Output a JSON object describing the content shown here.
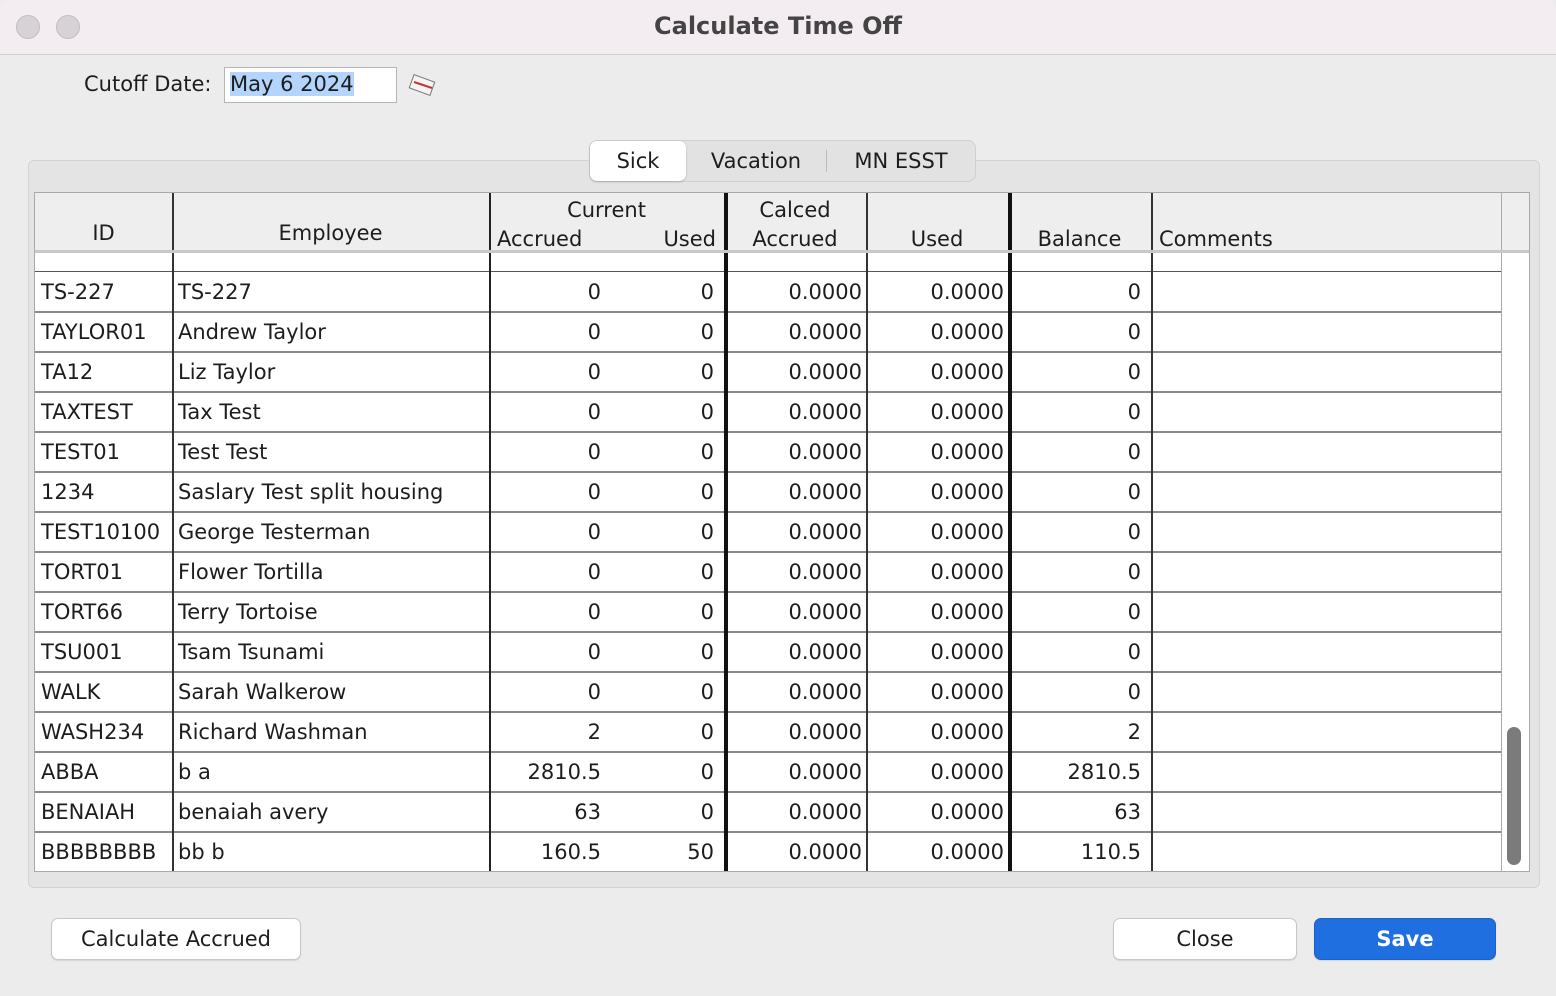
{
  "window": {
    "title": "Calculate Time Off"
  },
  "cutoff": {
    "label": "Cutoff Date:",
    "value": "May 6 2024"
  },
  "tabs": [
    "Sick",
    "Vacation",
    "MN ESST"
  ],
  "table": {
    "group_headers": [
      "Current",
      "Calced"
    ],
    "columns": [
      "ID",
      "Employee",
      "Accrued",
      "Used",
      "Accrued",
      "Used",
      "Balance",
      "Comments"
    ],
    "rows": [
      [
        "TS-227",
        "TS-227",
        "0",
        "0",
        "0.0000",
        "0.0000",
        "0",
        ""
      ],
      [
        "TAYLOR01",
        "Andrew Taylor",
        "0",
        "0",
        "0.0000",
        "0.0000",
        "0",
        ""
      ],
      [
        "TA12",
        "Liz Taylor",
        "0",
        "0",
        "0.0000",
        "0.0000",
        "0",
        ""
      ],
      [
        "TAXTEST",
        "Tax Test",
        "0",
        "0",
        "0.0000",
        "0.0000",
        "0",
        ""
      ],
      [
        "TEST01",
        "Test Test",
        "0",
        "0",
        "0.0000",
        "0.0000",
        "0",
        ""
      ],
      [
        "1234",
        "Saslary Test split housing",
        "0",
        "0",
        "0.0000",
        "0.0000",
        "0",
        ""
      ],
      [
        "TEST10100",
        "George Testerman",
        "0",
        "0",
        "0.0000",
        "0.0000",
        "0",
        ""
      ],
      [
        "TORT01",
        "Flower Tortilla",
        "0",
        "0",
        "0.0000",
        "0.0000",
        "0",
        ""
      ],
      [
        "TORT66",
        "Terry Tortoise",
        "0",
        "0",
        "0.0000",
        "0.0000",
        "0",
        ""
      ],
      [
        "TSU001",
        "Tsam Tsunami",
        "0",
        "0",
        "0.0000",
        "0.0000",
        "0",
        ""
      ],
      [
        "WALK",
        "Sarah Walkerow",
        "0",
        "0",
        "0.0000",
        "0.0000",
        "0",
        ""
      ],
      [
        "WASH234",
        "Richard Washman",
        "2",
        "0",
        "0.0000",
        "0.0000",
        "2",
        ""
      ],
      [
        "ABBA",
        "b a",
        "2810.5",
        "0",
        "0.0000",
        "0.0000",
        "2810.5",
        ""
      ],
      [
        "BENAIAH",
        "benaiah avery",
        "63",
        "0",
        "0.0000",
        "0.0000",
        "63",
        ""
      ],
      [
        "BBBBBBBB",
        "bb b",
        "160.5",
        "50",
        "0.0000",
        "0.0000",
        "110.5",
        ""
      ]
    ]
  },
  "buttons": {
    "calculate": "Calculate Accrued",
    "close": "Close",
    "save": "Save"
  }
}
